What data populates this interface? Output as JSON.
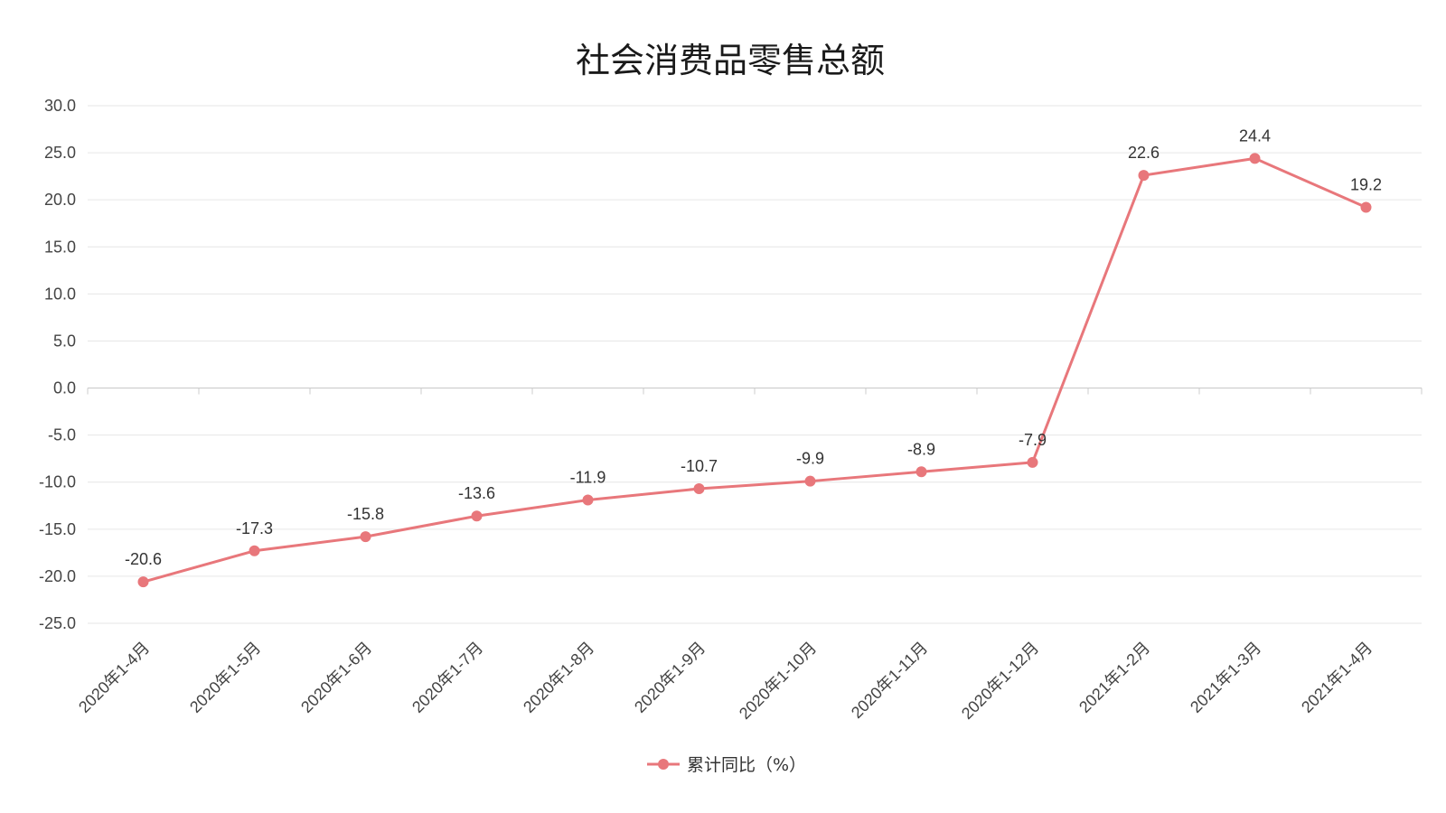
{
  "chart_data": {
    "type": "line",
    "title": "社会消费品零售总额",
    "xlabel": "",
    "ylabel": "",
    "categories": [
      "2020年1-4月",
      "2020年1-5月",
      "2020年1-6月",
      "2020年1-7月",
      "2020年1-8月",
      "2020年1-9月",
      "2020年1-10月",
      "2020年1-11月",
      "2020年1-12月",
      "2021年1-2月",
      "2021年1-3月",
      "2021年1-4月"
    ],
    "series": [
      {
        "name": "累计同比（%）",
        "values": [
          -20.6,
          -17.3,
          -15.8,
          -13.6,
          -11.9,
          -10.7,
          -9.9,
          -8.9,
          -7.9,
          22.6,
          24.4,
          19.2
        ],
        "color": "#e8777b"
      }
    ],
    "ylim": [
      -25,
      30
    ],
    "yticks": [
      "30.0",
      "25.0",
      "20.0",
      "15.0",
      "10.0",
      "5.0",
      "0.0",
      "-5.0",
      "-10.0",
      "-15.0",
      "-20.0",
      "-25.0"
    ],
    "grid": true,
    "data_labels": true,
    "legend_position": "bottom",
    "gridline_color": "#e6e6e6",
    "axis_color": "#cccccc"
  }
}
